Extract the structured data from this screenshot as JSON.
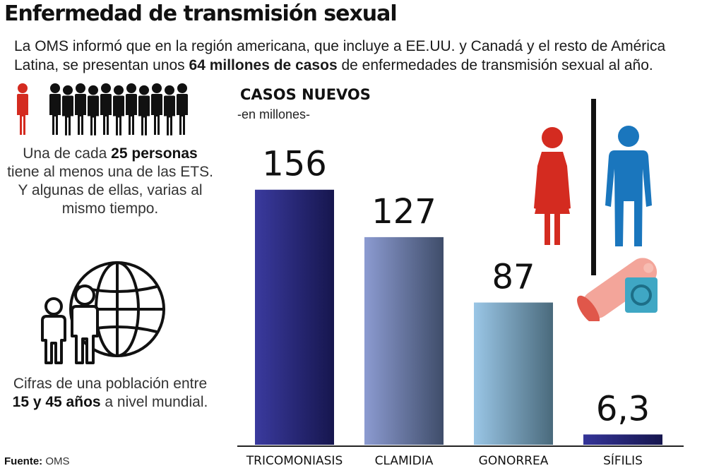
{
  "title": "Enfermedad de transmisión sexual",
  "intro": {
    "part1": "La OMS informó que en la región americana, que incluye a EE.UU. y Canadá y el resto de América Latina, se presentan unos ",
    "bold": "64 millones de casos",
    "part2": " de enfermedades de transmisión sexual al año."
  },
  "note1": {
    "part1": "Una de cada ",
    "bold": "25 personas",
    "part2": " tiene al menos una de las ETS. Y algunas de ellas, varias al mismo tiempo."
  },
  "note2": {
    "part1": "Cifras de una población entre ",
    "bold": "15 y 45 años",
    "part2": " a nivel mundial."
  },
  "source": {
    "label": "Fuente:",
    "value": "OMS"
  },
  "icons": {
    "person_highlight": "person-icon-red",
    "crowd": "crowd-icon",
    "globe": "globe-family-icon",
    "female": "female-icon",
    "male": "male-icon",
    "condom": "condom-icon"
  },
  "colors": {
    "highlight_red": "#d42b20",
    "male_blue": "#1a76bd",
    "condom_pink": "#f3a59a",
    "condom_teal": "#3fa7c4"
  },
  "chart_data": {
    "type": "bar",
    "title": "CASOS NUEVOS",
    "subtitle": "-en millones-",
    "categories": [
      "TRICOMONIASIS",
      "CLAMIDIA",
      "GONORREA",
      "SÍFILIS"
    ],
    "values": [
      156,
      127,
      87,
      6.3
    ],
    "value_labels": [
      "156",
      "127",
      "87",
      "6,3"
    ],
    "ylim": [
      0,
      190
    ],
    "grid": false,
    "legend": "none",
    "bar_colors": [
      [
        "#3a3a9e",
        "#16164e"
      ],
      [
        "#8c9bd1",
        "#3f4d6a"
      ],
      [
        "#9ac6e6",
        "#4a6a7c"
      ],
      [
        "#343498",
        "#16164e"
      ]
    ]
  }
}
